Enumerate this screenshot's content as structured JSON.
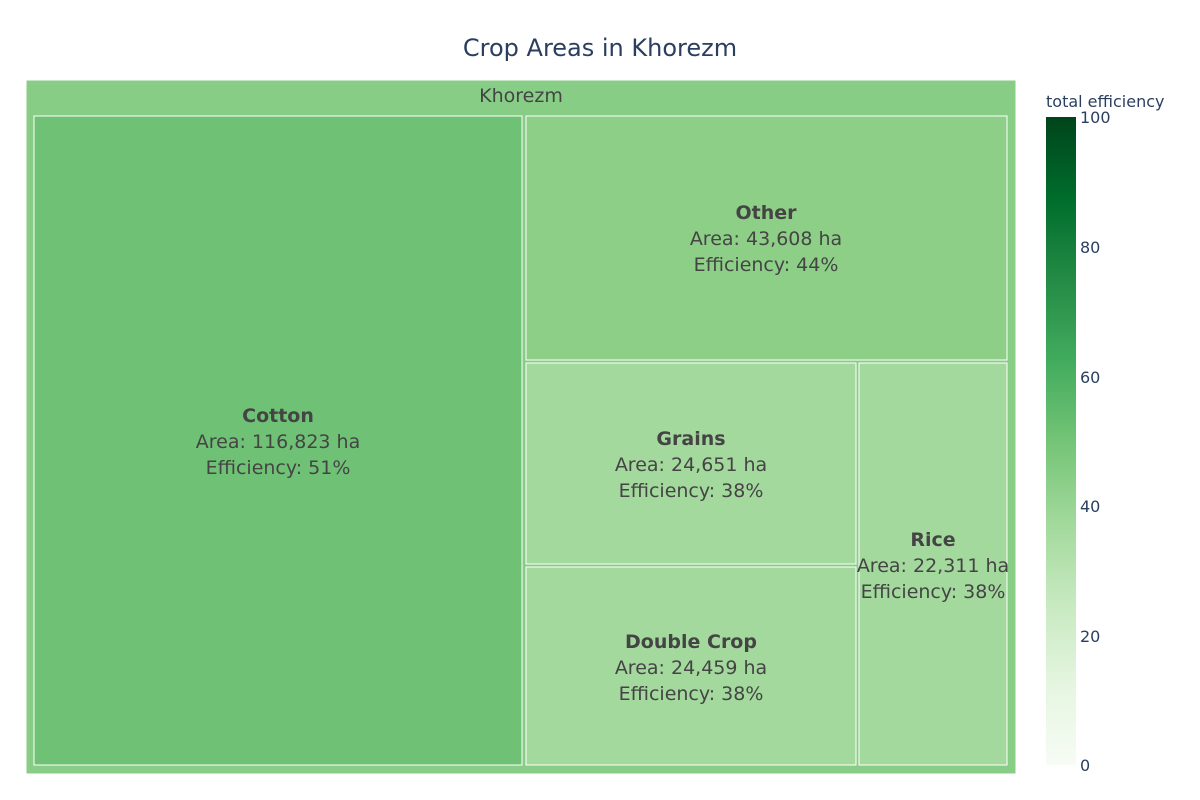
{
  "chart_data": {
    "type": "treemap",
    "title": "Crop Areas in Khorezm",
    "root": {
      "label": "Khorezm"
    },
    "tiles": [
      {
        "name": "Cotton",
        "area_text": "Area: 116,823 ha",
        "efficiency_text": "Efficiency: 51%",
        "area": 116823,
        "efficiency": 51
      },
      {
        "name": "Other",
        "area_text": "Area: 43,608 ha",
        "efficiency_text": "Efficiency: 44%",
        "area": 43608,
        "efficiency": 44
      },
      {
        "name": "Grains",
        "area_text": "Area: 24,651 ha",
        "efficiency_text": "Efficiency: 38%",
        "area": 24651,
        "efficiency": 38
      },
      {
        "name": "Double Crop",
        "area_text": "Area: 24,459 ha",
        "efficiency_text": "Efficiency: 38%",
        "area": 24459,
        "efficiency": 38
      },
      {
        "name": "Rice",
        "area_text": "Area: 22,311 ha",
        "efficiency_text": "Efficiency: 38%",
        "area": 22311,
        "efficiency": 38
      }
    ],
    "colorbar": {
      "title": "total efficiency",
      "range": [
        0,
        100
      ],
      "ticks": [
        "0",
        "20",
        "40",
        "60",
        "80",
        "100"
      ],
      "colors": {
        "root": "#88cd86",
        "cotton": "#6fc275",
        "other": "#8ecf88",
        "small": "#a4d99e"
      }
    }
  }
}
